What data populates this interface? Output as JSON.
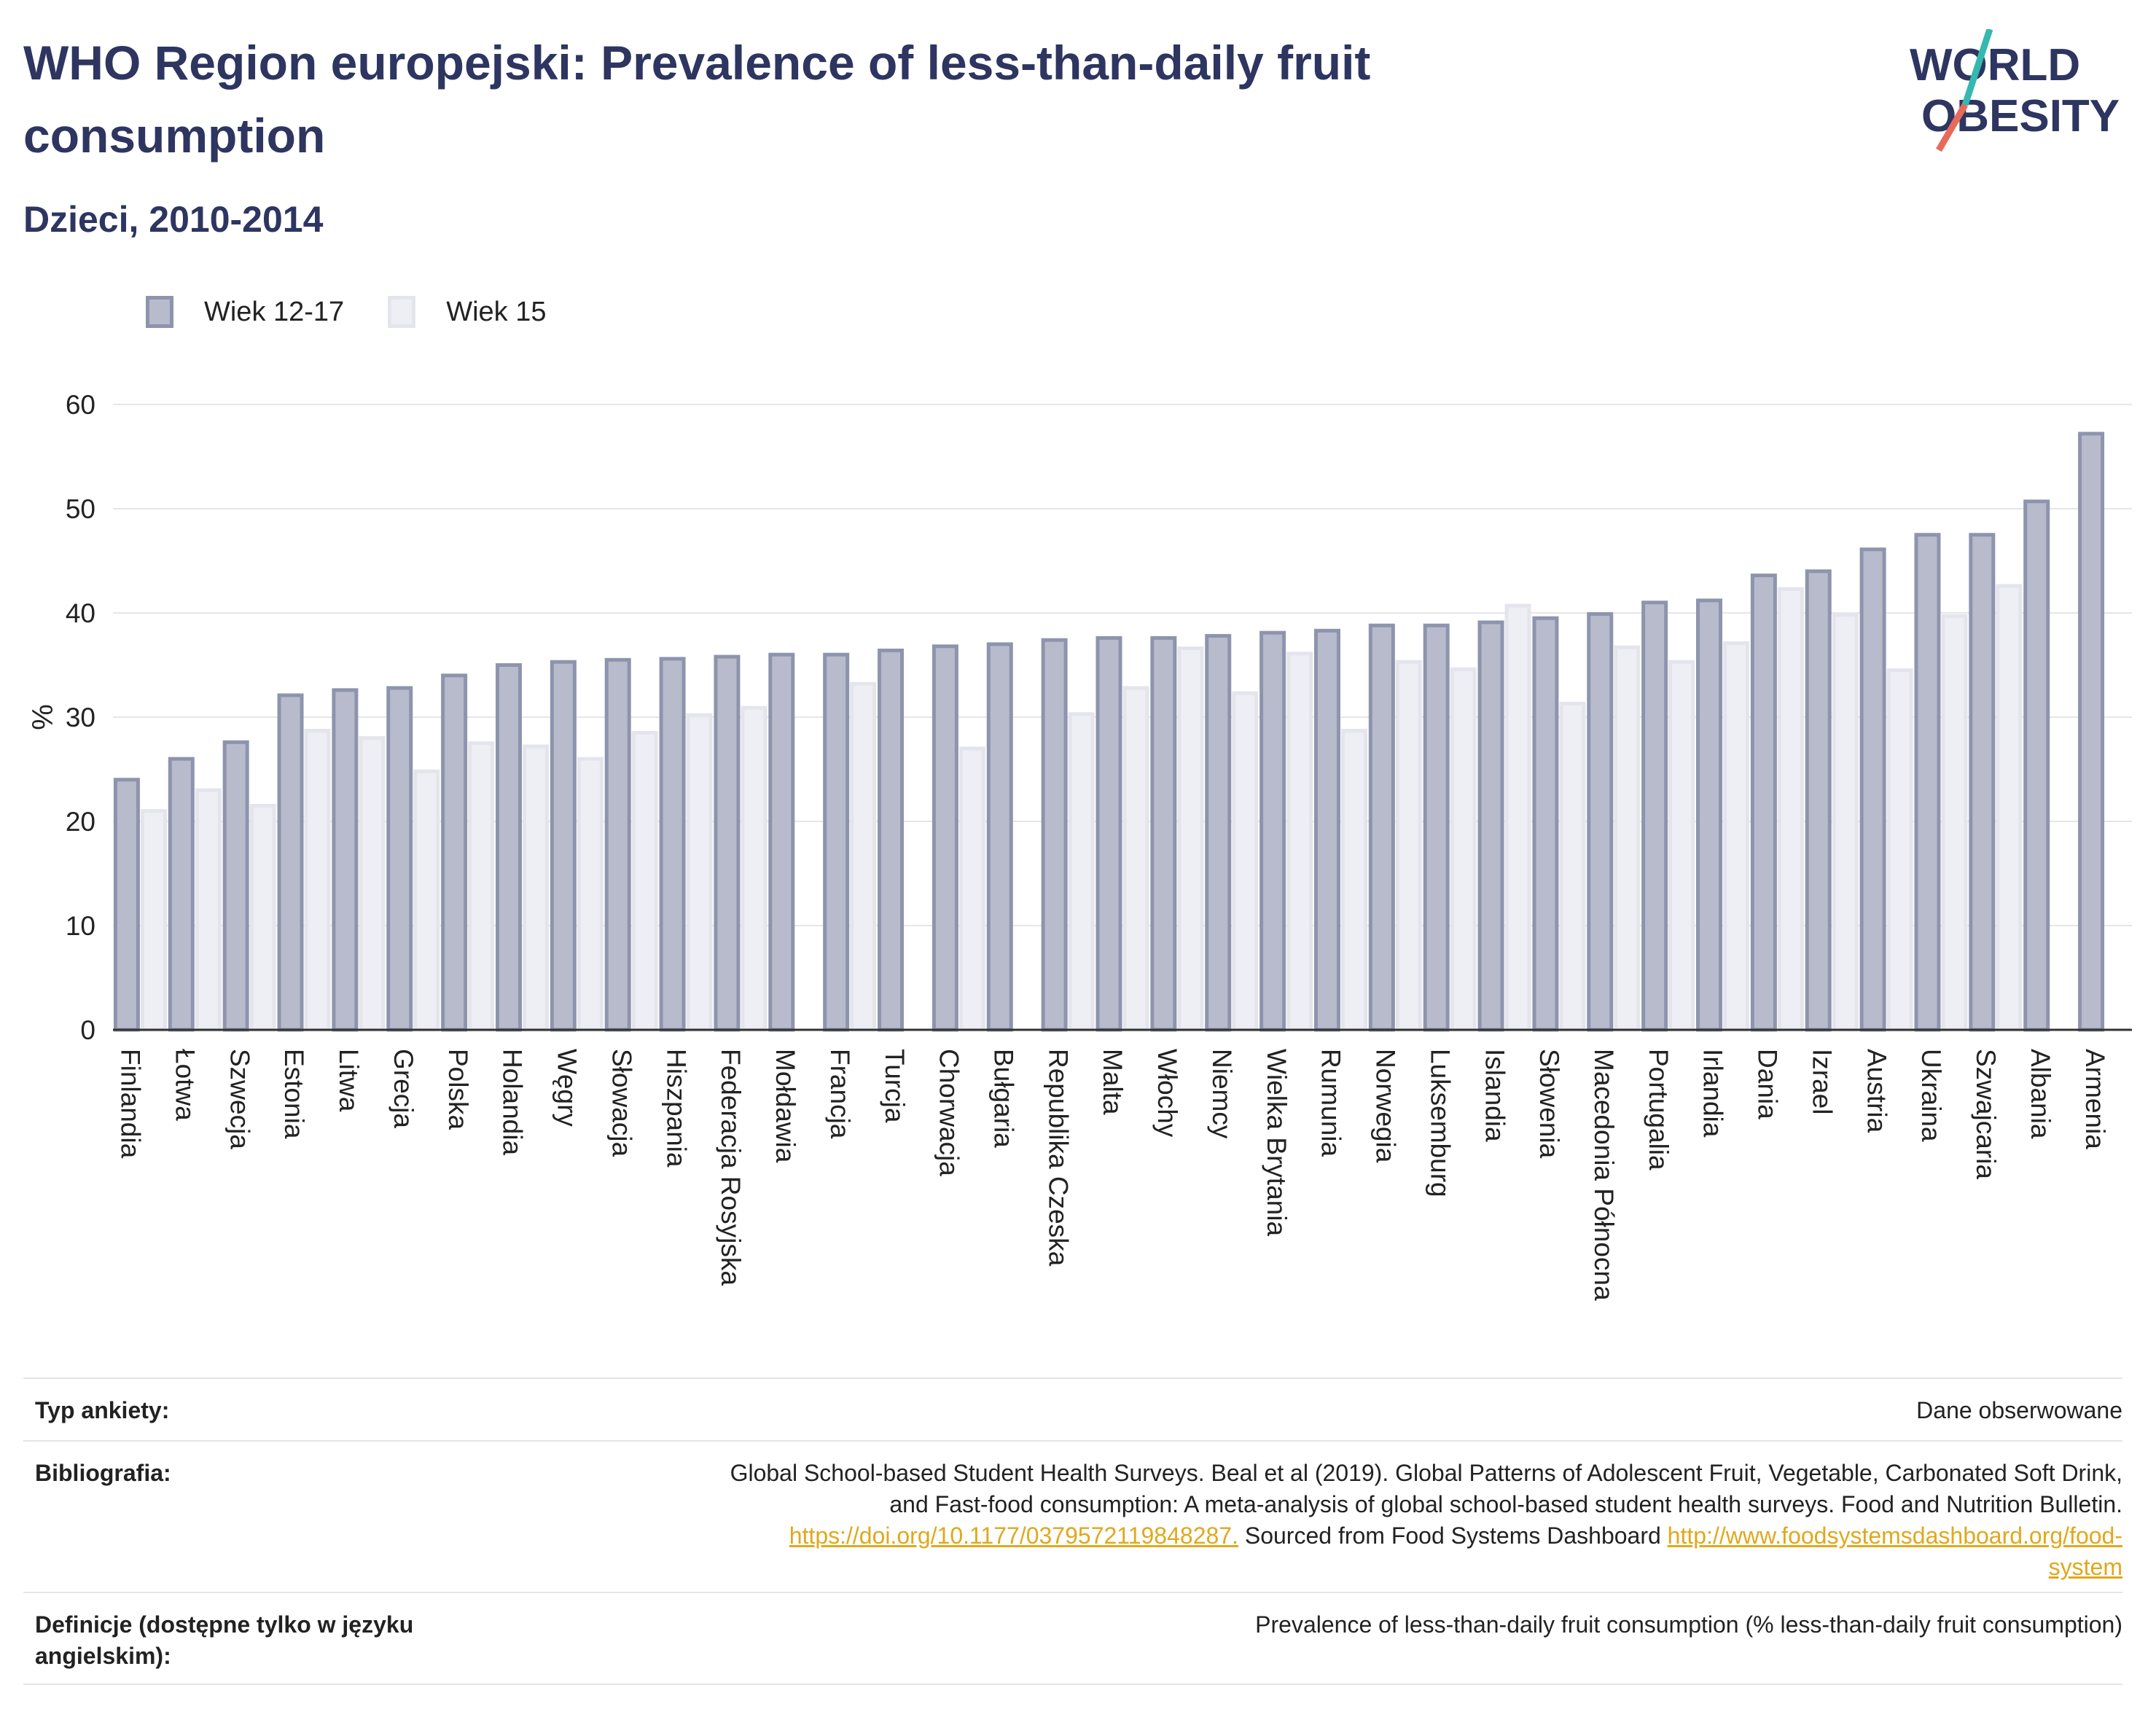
{
  "header": {
    "title": "WHO Region europejski: Prevalence of less-than-daily fruit consumption",
    "subtitle": "Dzieci, 2010-2014"
  },
  "logo": {
    "line1": "WORLD",
    "line2": "OBESITY",
    "colors": {
      "text": "#2d3560",
      "teal": "#35b8b0",
      "coral": "#e86a5a"
    }
  },
  "legend": {
    "items": [
      {
        "label": "Wiek 12-17",
        "color": "#b7bbcc"
      },
      {
        "label": "Wiek 15",
        "color": "#eeeff4"
      }
    ]
  },
  "chart_data": {
    "type": "bar",
    "ylabel": "%",
    "xlabel": "",
    "ylim": [
      0,
      60
    ],
    "yticks": [
      0,
      10,
      20,
      30,
      40,
      50,
      60
    ],
    "grid": true,
    "legend_position": "top-left",
    "categories": [
      "Finlandia",
      "Łotwa",
      "Szwecja",
      "Estonia",
      "Litwa",
      "Grecja",
      "Polska",
      "Holandia",
      "Węgry",
      "Słowacja",
      "Hiszpania",
      "Federacja Rosyjska",
      "Mołdawia",
      "Francja",
      "Turcja",
      "Chorwacja",
      "Bułgaria",
      "Republika Czeska",
      "Malta",
      "Włochy",
      "Niemcy",
      "Wielka Brytania",
      "Rumunia",
      "Norwegia",
      "Luksemburg",
      "Islandia",
      "Słowenia",
      "Macedonia Północna",
      "Portugalia",
      "Irlandia",
      "Dania",
      "Izrael",
      "Austria",
      "Ukraina",
      "Szwajcaria",
      "Albania",
      "Armenia"
    ],
    "series": [
      {
        "name": "Wiek 12-17",
        "color": "#b7bbcc",
        "stroke": "#8e94ad",
        "values": [
          24.0,
          26.0,
          27.6,
          32.1,
          32.6,
          32.8,
          34.0,
          35.0,
          35.3,
          35.5,
          35.6,
          35.8,
          36.0,
          36.0,
          36.4,
          36.8,
          37.0,
          37.4,
          37.6,
          37.6,
          37.8,
          38.1,
          38.3,
          38.8,
          38.8,
          39.1,
          39.5,
          39.9,
          41.0,
          41.2,
          43.6,
          44.0,
          46.1,
          47.5,
          47.5,
          50.7,
          57.2
        ]
      },
      {
        "name": "Wiek 15",
        "color": "#eeeff4",
        "stroke": "#e4e5ec",
        "values": [
          21.0,
          23.0,
          21.5,
          28.7,
          28.0,
          24.8,
          27.5,
          27.2,
          26.0,
          28.5,
          30.2,
          30.9,
          null,
          33.2,
          null,
          27.0,
          null,
          30.3,
          32.8,
          36.6,
          32.3,
          36.1,
          28.7,
          35.3,
          34.6,
          40.7,
          31.3,
          36.7,
          35.3,
          37.1,
          42.3,
          39.8,
          34.5,
          39.7,
          42.6,
          null,
          null
        ]
      }
    ]
  },
  "meta": {
    "survey_type_label": "Typ ankiety:",
    "survey_type_value": "Dane obserwowane",
    "bibliography_label": "Bibliografia:",
    "bibliography_line1": "Global School-based Student Health Surveys. Beal et al (2019). Global Patterns of Adolescent Fruit, Vegetable, Carbonated Soft Drink,",
    "bibliography_line2": "and Fast-food consumption: A meta-analysis of global school-based student health surveys. Food and Nutrition Bulletin.",
    "bibliography_link1": "https://doi.org/10.1177/0379572119848287.",
    "bibliography_mid": " Sourced from Food Systems Dashboard ",
    "bibliography_link2a": "http://www.foodsystemsdashboard.org/food-",
    "bibliography_link2b": "system",
    "definitions_label_line1": "Definicje (dostępne tylko w języku",
    "definitions_label_line2": "angielskim):",
    "definitions_value": "Prevalence of less-than-daily fruit consumption (% less-than-daily fruit consumption)"
  }
}
